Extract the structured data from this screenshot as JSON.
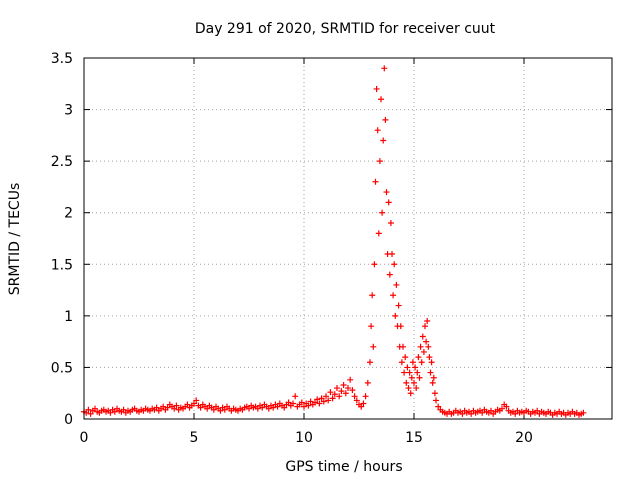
{
  "chart_data": {
    "type": "scatter",
    "title": "Day 291 of 2020, SRMTID for receiver cuut",
    "xlabel": "GPS time / hours",
    "ylabel": "SRMTID / TECUs",
    "xlim": [
      0,
      24
    ],
    "ylim": [
      0,
      3.5
    ],
    "xticks": [
      0,
      5,
      10,
      15,
      20
    ],
    "xtick_labels": [
      "0",
      "5",
      "10",
      "15",
      "20"
    ],
    "yticks": [
      0,
      0.5,
      1,
      1.5,
      2,
      2.5,
      3,
      3.5
    ],
    "ytick_labels": [
      "0",
      "0.5",
      "1",
      "1.5",
      "2",
      "2.5",
      "3",
      "3.5"
    ],
    "grid": true,
    "marker": "+",
    "color": "#ff0000",
    "series": [
      {
        "name": "SRMTID",
        "points": [
          [
            0.0,
            0.07
          ],
          [
            0.1,
            0.06
          ],
          [
            0.2,
            0.09
          ],
          [
            0.3,
            0.05
          ],
          [
            0.4,
            0.08
          ],
          [
            0.5,
            0.1
          ],
          [
            0.6,
            0.07
          ],
          [
            0.7,
            0.06
          ],
          [
            0.8,
            0.08
          ],
          [
            0.9,
            0.09
          ],
          [
            1.0,
            0.07
          ],
          [
            1.1,
            0.08
          ],
          [
            1.2,
            0.06
          ],
          [
            1.3,
            0.09
          ],
          [
            1.4,
            0.07
          ],
          [
            1.5,
            0.1
          ],
          [
            1.6,
            0.08
          ],
          [
            1.7,
            0.07
          ],
          [
            1.8,
            0.09
          ],
          [
            1.9,
            0.06
          ],
          [
            2.0,
            0.08
          ],
          [
            2.1,
            0.07
          ],
          [
            2.2,
            0.09
          ],
          [
            2.3,
            0.1
          ],
          [
            2.4,
            0.08
          ],
          [
            2.5,
            0.07
          ],
          [
            2.6,
            0.09
          ],
          [
            2.7,
            0.08
          ],
          [
            2.8,
            0.1
          ],
          [
            2.9,
            0.09
          ],
          [
            3.0,
            0.08
          ],
          [
            3.1,
            0.1
          ],
          [
            3.2,
            0.09
          ],
          [
            3.3,
            0.11
          ],
          [
            3.4,
            0.08
          ],
          [
            3.5,
            0.1
          ],
          [
            3.6,
            0.12
          ],
          [
            3.7,
            0.09
          ],
          [
            3.8,
            0.11
          ],
          [
            3.9,
            0.14
          ],
          [
            4.0,
            0.12
          ],
          [
            4.1,
            0.1
          ],
          [
            4.2,
            0.13
          ],
          [
            4.3,
            0.09
          ],
          [
            4.4,
            0.11
          ],
          [
            4.5,
            0.1
          ],
          [
            4.6,
            0.12
          ],
          [
            4.7,
            0.14
          ],
          [
            4.8,
            0.11
          ],
          [
            4.9,
            0.13
          ],
          [
            5.0,
            0.15
          ],
          [
            5.1,
            0.18
          ],
          [
            5.2,
            0.13
          ],
          [
            5.3,
            0.11
          ],
          [
            5.4,
            0.14
          ],
          [
            5.5,
            0.12
          ],
          [
            5.6,
            0.1
          ],
          [
            5.7,
            0.13
          ],
          [
            5.8,
            0.11
          ],
          [
            5.9,
            0.09
          ],
          [
            6.0,
            0.12
          ],
          [
            6.1,
            0.1
          ],
          [
            6.2,
            0.08
          ],
          [
            6.3,
            0.11
          ],
          [
            6.4,
            0.09
          ],
          [
            6.5,
            0.12
          ],
          [
            6.6,
            0.1
          ],
          [
            6.7,
            0.08
          ],
          [
            6.8,
            0.1
          ],
          [
            6.9,
            0.09
          ],
          [
            7.0,
            0.08
          ],
          [
            7.1,
            0.1
          ],
          [
            7.2,
            0.09
          ],
          [
            7.3,
            0.11
          ],
          [
            7.4,
            0.12
          ],
          [
            7.5,
            0.1
          ],
          [
            7.6,
            0.13
          ],
          [
            7.7,
            0.11
          ],
          [
            7.8,
            0.12
          ],
          [
            7.9,
            0.1
          ],
          [
            8.0,
            0.13
          ],
          [
            8.1,
            0.11
          ],
          [
            8.2,
            0.14
          ],
          [
            8.3,
            0.12
          ],
          [
            8.4,
            0.1
          ],
          [
            8.5,
            0.13
          ],
          [
            8.6,
            0.11
          ],
          [
            8.7,
            0.14
          ],
          [
            8.8,
            0.12
          ],
          [
            8.9,
            0.15
          ],
          [
            9.0,
            0.13
          ],
          [
            9.1,
            0.11
          ],
          [
            9.2,
            0.14
          ],
          [
            9.3,
            0.16
          ],
          [
            9.4,
            0.13
          ],
          [
            9.5,
            0.15
          ],
          [
            9.6,
            0.22
          ],
          [
            9.7,
            0.12
          ],
          [
            9.8,
            0.14
          ],
          [
            9.9,
            0.16
          ],
          [
            10.0,
            0.12
          ],
          [
            10.1,
            0.15
          ],
          [
            10.2,
            0.13
          ],
          [
            10.3,
            0.17
          ],
          [
            10.4,
            0.14
          ],
          [
            10.5,
            0.16
          ],
          [
            10.6,
            0.19
          ],
          [
            10.7,
            0.15
          ],
          [
            10.8,
            0.2
          ],
          [
            10.9,
            0.17
          ],
          [
            11.0,
            0.22
          ],
          [
            11.1,
            0.18
          ],
          [
            11.2,
            0.26
          ],
          [
            11.3,
            0.2
          ],
          [
            11.4,
            0.24
          ],
          [
            11.5,
            0.3
          ],
          [
            11.6,
            0.22
          ],
          [
            11.7,
            0.27
          ],
          [
            11.8,
            0.33
          ],
          [
            11.9,
            0.25
          ],
          [
            12.0,
            0.3
          ],
          [
            12.1,
            0.38
          ],
          [
            12.2,
            0.28
          ],
          [
            12.3,
            0.22
          ],
          [
            12.4,
            0.18
          ],
          [
            12.5,
            0.14
          ],
          [
            12.6,
            0.12
          ],
          [
            12.7,
            0.15
          ],
          [
            12.8,
            0.22
          ],
          [
            12.9,
            0.35
          ],
          [
            13.0,
            0.55
          ],
          [
            13.05,
            0.9
          ],
          [
            13.1,
            1.2
          ],
          [
            13.15,
            0.7
          ],
          [
            13.2,
            1.5
          ],
          [
            13.25,
            2.3
          ],
          [
            13.3,
            3.2
          ],
          [
            13.35,
            2.8
          ],
          [
            13.4,
            1.8
          ],
          [
            13.45,
            2.5
          ],
          [
            13.5,
            3.1
          ],
          [
            13.55,
            2.0
          ],
          [
            13.6,
            2.7
          ],
          [
            13.65,
            3.4
          ],
          [
            13.7,
            2.9
          ],
          [
            13.75,
            2.2
          ],
          [
            13.8,
            1.6
          ],
          [
            13.85,
            2.1
          ],
          [
            13.9,
            1.4
          ],
          [
            13.95,
            1.9
          ],
          [
            14.0,
            1.6
          ],
          [
            14.05,
            1.2
          ],
          [
            14.1,
            1.5
          ],
          [
            14.15,
            1.0
          ],
          [
            14.2,
            1.3
          ],
          [
            14.25,
            0.9
          ],
          [
            14.3,
            1.1
          ],
          [
            14.35,
            0.7
          ],
          [
            14.4,
            0.9
          ],
          [
            14.45,
            0.55
          ],
          [
            14.5,
            0.7
          ],
          [
            14.55,
            0.45
          ],
          [
            14.6,
            0.6
          ],
          [
            14.65,
            0.35
          ],
          [
            14.7,
            0.5
          ],
          [
            14.75,
            0.3
          ],
          [
            14.8,
            0.45
          ],
          [
            14.85,
            0.25
          ],
          [
            14.9,
            0.4
          ],
          [
            14.95,
            0.55
          ],
          [
            15.0,
            0.35
          ],
          [
            15.05,
            0.5
          ],
          [
            15.1,
            0.3
          ],
          [
            15.15,
            0.45
          ],
          [
            15.2,
            0.6
          ],
          [
            15.25,
            0.4
          ],
          [
            15.3,
            0.7
          ],
          [
            15.35,
            0.55
          ],
          [
            15.4,
            0.8
          ],
          [
            15.45,
            0.65
          ],
          [
            15.5,
            0.9
          ],
          [
            15.55,
            0.75
          ],
          [
            15.6,
            0.95
          ],
          [
            15.65,
            0.7
          ],
          [
            15.7,
            0.6
          ],
          [
            15.75,
            0.45
          ],
          [
            15.8,
            0.55
          ],
          [
            15.85,
            0.35
          ],
          [
            15.9,
            0.4
          ],
          [
            15.95,
            0.25
          ],
          [
            16.0,
            0.18
          ],
          [
            16.1,
            0.12
          ],
          [
            16.2,
            0.09
          ],
          [
            16.3,
            0.07
          ],
          [
            16.4,
            0.06
          ],
          [
            16.5,
            0.05
          ],
          [
            16.6,
            0.07
          ],
          [
            16.7,
            0.05
          ],
          [
            16.8,
            0.06
          ],
          [
            16.9,
            0.08
          ],
          [
            17.0,
            0.06
          ],
          [
            17.1,
            0.07
          ],
          [
            17.2,
            0.05
          ],
          [
            17.3,
            0.08
          ],
          [
            17.4,
            0.06
          ],
          [
            17.5,
            0.07
          ],
          [
            17.6,
            0.05
          ],
          [
            17.7,
            0.08
          ],
          [
            17.8,
            0.06
          ],
          [
            17.9,
            0.07
          ],
          [
            18.0,
            0.08
          ],
          [
            18.1,
            0.06
          ],
          [
            18.2,
            0.09
          ],
          [
            18.3,
            0.07
          ],
          [
            18.4,
            0.06
          ],
          [
            18.5,
            0.08
          ],
          [
            18.6,
            0.05
          ],
          [
            18.7,
            0.07
          ],
          [
            18.8,
            0.09
          ],
          [
            18.9,
            0.08
          ],
          [
            19.0,
            0.1
          ],
          [
            19.1,
            0.14
          ],
          [
            19.2,
            0.12
          ],
          [
            19.3,
            0.08
          ],
          [
            19.4,
            0.06
          ],
          [
            19.5,
            0.07
          ],
          [
            19.6,
            0.05
          ],
          [
            19.7,
            0.08
          ],
          [
            19.8,
            0.06
          ],
          [
            19.9,
            0.07
          ],
          [
            20.0,
            0.06
          ],
          [
            20.1,
            0.08
          ],
          [
            20.2,
            0.07
          ],
          [
            20.3,
            0.05
          ],
          [
            20.4,
            0.07
          ],
          [
            20.5,
            0.06
          ],
          [
            20.6,
            0.08
          ],
          [
            20.7,
            0.05
          ],
          [
            20.8,
            0.07
          ],
          [
            20.9,
            0.06
          ],
          [
            21.0,
            0.05
          ],
          [
            21.1,
            0.07
          ],
          [
            21.2,
            0.06
          ],
          [
            21.3,
            0.04
          ],
          [
            21.4,
            0.06
          ],
          [
            21.5,
            0.05
          ],
          [
            21.6,
            0.07
          ],
          [
            21.7,
            0.05
          ],
          [
            21.8,
            0.06
          ],
          [
            21.9,
            0.04
          ],
          [
            22.0,
            0.06
          ],
          [
            22.1,
            0.05
          ],
          [
            22.2,
            0.07
          ],
          [
            22.3,
            0.05
          ],
          [
            22.4,
            0.06
          ],
          [
            22.5,
            0.04
          ],
          [
            22.6,
            0.05
          ],
          [
            22.7,
            0.06
          ]
        ]
      }
    ]
  }
}
